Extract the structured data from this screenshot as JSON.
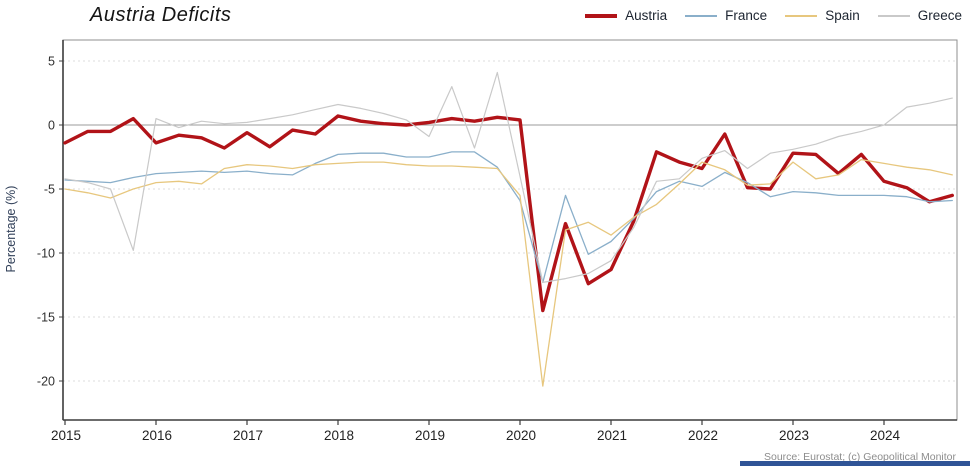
{
  "header": {
    "title": "Austria Deficits"
  },
  "source": {
    "text": "Source: Eurostat; (c) Geopolitical Monitor"
  },
  "accent_bar_color": "#2f5496",
  "chart_data": {
    "type": "line",
    "title": "Austria Deficits",
    "xlabel": "",
    "ylabel": "Percentage (%)",
    "x_frequency": "quarterly",
    "x_start": "2015-Q1",
    "x_end": "2024-Q4",
    "xlabels": [
      "2015",
      "2016",
      "2017",
      "2018",
      "2019",
      "2020",
      "2021",
      "2022",
      "2023",
      "2024"
    ],
    "yticks": [
      "5",
      "0",
      "-5",
      "-10",
      "-15",
      "-20"
    ],
    "ytick_values": [
      5,
      0,
      -5,
      -10,
      -15,
      -20
    ],
    "ylim": [
      -21.5,
      6.2
    ],
    "grid": "horizontal-dashed",
    "zero_line": true,
    "legend_position": "top-right",
    "series": [
      {
        "name": "Austria",
        "color": "#b11318",
        "line_width": 3.4,
        "values": [
          -1.4,
          -0.5,
          -0.5,
          0.5,
          -1.4,
          -0.8,
          -1.0,
          -1.8,
          -0.6,
          -1.7,
          -0.4,
          -0.7,
          0.7,
          0.3,
          0.1,
          0.0,
          0.2,
          0.5,
          0.3,
          0.6,
          0.4,
          -14.5,
          -7.7,
          -12.4,
          -11.3,
          -7.5,
          -2.1,
          -2.9,
          -3.4,
          -0.7,
          -4.9,
          -5.0,
          -2.2,
          -2.3,
          -3.8,
          -2.3,
          -4.4,
          -4.9,
          -6.0,
          -5.5
        ]
      },
      {
        "name": "France",
        "color": "#8aafca",
        "line_width": 1.3,
        "values": [
          -4.3,
          -4.4,
          -4.5,
          -4.1,
          -3.8,
          -3.7,
          -3.6,
          -3.7,
          -3.6,
          -3.8,
          -3.9,
          -3.0,
          -2.3,
          -2.2,
          -2.2,
          -2.5,
          -2.5,
          -2.1,
          -2.1,
          -3.3,
          -5.9,
          -12.3,
          -5.5,
          -10.1,
          -9.1,
          -7.3,
          -5.2,
          -4.4,
          -4.8,
          -3.7,
          -4.5,
          -5.6,
          -5.2,
          -5.3,
          -5.5,
          -5.5,
          -5.5,
          -5.6,
          -6.0,
          -5.9
        ]
      },
      {
        "name": "Spain",
        "color": "#e7c77e",
        "line_width": 1.3,
        "values": [
          -5.0,
          -5.3,
          -5.7,
          -5.0,
          -4.5,
          -4.4,
          -4.6,
          -3.4,
          -3.1,
          -3.2,
          -3.4,
          -3.1,
          -3.0,
          -2.9,
          -2.9,
          -3.1,
          -3.2,
          -3.2,
          -3.3,
          -3.4,
          -5.5,
          -20.4,
          -8.2,
          -7.6,
          -8.6,
          -7.2,
          -6.2,
          -4.6,
          -2.9,
          -3.5,
          -4.7,
          -4.6,
          -2.9,
          -4.2,
          -3.9,
          -2.7,
          -3.0,
          -3.3,
          -3.5,
          -3.9
        ]
      },
      {
        "name": "Greece",
        "color": "#c9c9c9",
        "line_width": 1.2,
        "values": [
          -4.2,
          -4.5,
          -5.0,
          -9.8,
          0.5,
          -0.2,
          0.3,
          0.1,
          0.2,
          0.5,
          0.8,
          1.2,
          1.6,
          1.3,
          0.9,
          0.4,
          -0.9,
          3.0,
          -1.8,
          4.1,
          -4.0,
          -12.3,
          -12.0,
          -11.6,
          -10.6,
          -8.0,
          -4.4,
          -4.2,
          -2.6,
          -2.0,
          -3.4,
          -2.2,
          -1.9,
          -1.5,
          -0.9,
          -0.5,
          0.0,
          1.4,
          1.7,
          2.1
        ]
      }
    ]
  }
}
